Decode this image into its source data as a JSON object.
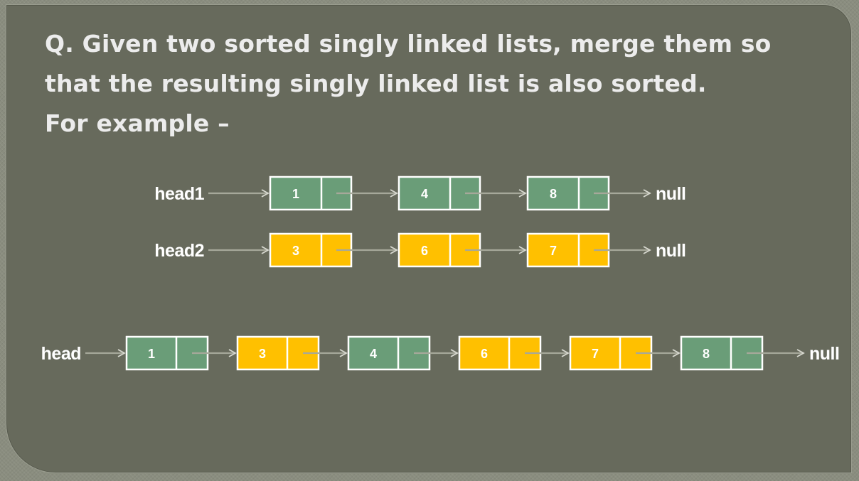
{
  "question": {
    "lines": [
      "Q. Given two sorted singly linked lists, merge them so",
      "that the resulting singly linked list is also sorted.",
      "For example –"
    ]
  },
  "colors": {
    "green_node": "#6a9d78",
    "yellow_node": "#ffc000",
    "node_border": "#ffffff",
    "arrow": "#a6a89a",
    "label_text": "#ffffff",
    "panel": "#676a5c",
    "background": "#8a8d7f"
  },
  "lists": [
    {
      "name": "list1",
      "head_label": "head1",
      "null_label": "null",
      "nodes": [
        {
          "value": "1",
          "color": "green"
        },
        {
          "value": "4",
          "color": "green"
        },
        {
          "value": "8",
          "color": "green"
        }
      ]
    },
    {
      "name": "list2",
      "head_label": "head2",
      "null_label": "null",
      "nodes": [
        {
          "value": "3",
          "color": "yellow"
        },
        {
          "value": "6",
          "color": "yellow"
        },
        {
          "value": "7",
          "color": "yellow"
        }
      ]
    },
    {
      "name": "merged",
      "head_label": "head",
      "null_label": "null",
      "nodes": [
        {
          "value": "1",
          "color": "green"
        },
        {
          "value": "3",
          "color": "yellow"
        },
        {
          "value": "4",
          "color": "green"
        },
        {
          "value": "6",
          "color": "yellow"
        },
        {
          "value": "7",
          "color": "yellow"
        },
        {
          "value": "8",
          "color": "green"
        }
      ]
    }
  ]
}
